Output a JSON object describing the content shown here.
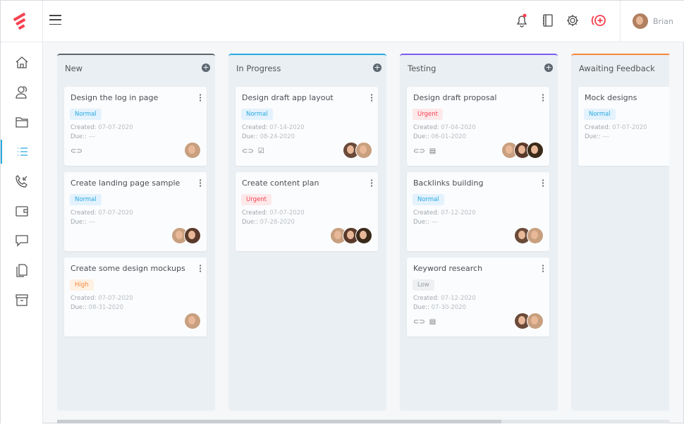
{
  "header": {
    "user_name": "Brian",
    "icons": [
      "menu-icon",
      "bell-icon",
      "notebook-icon",
      "gear-icon",
      "add-broadcast-icon"
    ],
    "brand_color": "#f5414f",
    "notification_dot": true
  },
  "sidebar": {
    "items": [
      "home-icon",
      "contacts-icon",
      "folder-icon",
      "list-icon",
      "phone-icon",
      "wallet-icon",
      "chat-icon",
      "documents-icon",
      "archive-icon"
    ],
    "active": "list-icon",
    "accent": "#29a9e1"
  },
  "board": {
    "columns": [
      {
        "title": "New",
        "color": "#5c6670",
        "add": true,
        "cards": [
          {
            "title": "Design the log in page",
            "priority": "Normal",
            "created": "07-07-2020",
            "due": "---",
            "icons": [
              "paperclip-icon"
            ],
            "avatars": [
              "#c8a080"
            ]
          },
          {
            "title": "Create landing page sample",
            "priority": "Normal",
            "created": "07-07-2020",
            "due": "---",
            "icons": [],
            "avatars": [
              "#c8a080",
              "#5a3a2a"
            ]
          },
          {
            "title": "Create some design mockups",
            "priority": "High",
            "created": "07-07-2020",
            "due": "08-31-2020",
            "icons": [],
            "avatars": [
              "#c8a080"
            ]
          }
        ]
      },
      {
        "title": "In Progress",
        "color": "#29a9e1",
        "add": true,
        "cards": [
          {
            "title": "Design draft app layout",
            "priority": "Normal",
            "created": "07-14-2020",
            "due": "08-24-2020",
            "icons": [
              "paperclip-icon",
              "checkbox-icon"
            ],
            "avatars": [
              "#6a4a3a",
              "#c8a080"
            ]
          },
          {
            "title": "Create content plan",
            "priority": "Urgent",
            "created": "07-07-2020",
            "due": "07-28-2020",
            "icons": [],
            "avatars": [
              "#c8a080",
              "#5a3a2a",
              "#3a2a1a"
            ]
          }
        ]
      },
      {
        "title": "Testing",
        "color": "#7b5cf0",
        "add": true,
        "cards": [
          {
            "title": "Design draft proposal",
            "priority": "Urgent",
            "created": "07-04-2020",
            "due": "06-01-2020",
            "icons": [
              "paperclip-icon",
              "comment-icon"
            ],
            "avatars": [
              "#c8a080",
              "#5a3a2a",
              "#3a2a1a"
            ]
          },
          {
            "title": "Backlinks building",
            "priority": "Normal",
            "created": "07-12-2020",
            "due": "---",
            "icons": [],
            "avatars": [
              "#6a4a3a",
              "#c8a080"
            ]
          },
          {
            "title": "Keyword research",
            "priority": "Low",
            "created": "07-12-2020",
            "due": "07-30-2020",
            "icons": [
              "paperclip-icon",
              "comment-icon"
            ],
            "avatars": [
              "#6a4a3a",
              "#c8a080"
            ]
          }
        ]
      },
      {
        "title": "Awaiting Feedback",
        "color": "#f7873a",
        "add": false,
        "cards": [
          {
            "title": "Mock designs",
            "priority": "Normal",
            "created": "07-07-2020",
            "due": "---",
            "icons": [],
            "avatars": []
          }
        ]
      }
    ]
  },
  "labels": {
    "created": "Created: ",
    "due": "Due:: "
  },
  "priority_colors": {
    "Normal": {
      "bg": "#e3f2fd",
      "fg": "#29a9e1"
    },
    "Urgent": {
      "bg": "#fde8ea",
      "fg": "#f5414f"
    },
    "High": {
      "bg": "#fff1e3",
      "fg": "#f7873a"
    },
    "Low": {
      "bg": "#eef0f2",
      "fg": "#9aa0a8"
    }
  }
}
